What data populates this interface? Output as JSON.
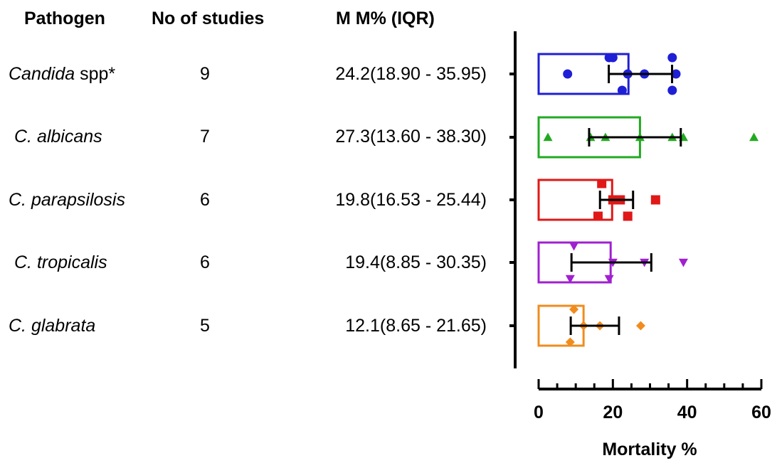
{
  "headers": {
    "pathogen": "Pathogen",
    "studies": "No of studies",
    "mm": "M M% (IQR)"
  },
  "rows": [
    {
      "name_italic": "Candida",
      "name_rest": " spp*",
      "studies": "9",
      "mm": "24.2(18.90 - 35.95)"
    },
    {
      "name_italic": "C. albicans",
      "name_rest": "",
      "studies": "7",
      "mm": "27.3(13.60 - 38.30)"
    },
    {
      "name_italic": "C. parapsilosis",
      "name_rest": "",
      "studies": "6",
      "mm": "19.8(16.53 - 25.44)"
    },
    {
      "name_italic": "C. tropicalis",
      "name_rest": "",
      "studies": "6",
      "mm": "19.4(8.85 - 30.35)"
    },
    {
      "name_italic": "C. glabrata",
      "name_rest": "",
      "studies": "5",
      "mm": "12.1(8.65 - 21.65)"
    }
  ],
  "chart_data": {
    "type": "bar",
    "xlabel": "Mortality %",
    "xlim": [
      0,
      60
    ],
    "xticks": [
      "0",
      "20",
      "40",
      "60"
    ],
    "minor_tick_step": 5,
    "orientation": "horizontal",
    "series": [
      {
        "median": 24.2,
        "iqr": [
          18.9,
          35.95
        ],
        "color": "#1f1fd6",
        "marker": "circle",
        "points": [
          7.8,
          20.0,
          19.0,
          24.0,
          28.5,
          36.0,
          22.5,
          37.0,
          36.0
        ]
      },
      {
        "median": 27.3,
        "iqr": [
          13.6,
          38.3
        ],
        "color": "#22aa22",
        "marker": "triangle-up",
        "points": [
          2.5,
          14.0,
          18.0,
          27.3,
          36.0,
          39.0,
          58.0
        ]
      },
      {
        "median": 19.8,
        "iqr": [
          16.53,
          25.44
        ],
        "color": "#e01818",
        "marker": "square",
        "points": [
          17.0,
          20.0,
          22.0,
          16.0,
          24.0,
          31.5
        ]
      },
      {
        "median": 19.4,
        "iqr": [
          8.85,
          30.35
        ],
        "color": "#a020d0",
        "marker": "triangle-down",
        "points": [
          9.5,
          20.0,
          8.5,
          19.0,
          28.5,
          39.0
        ]
      },
      {
        "median": 12.1,
        "iqr": [
          8.65,
          21.65
        ],
        "color": "#f08c1e",
        "marker": "diamond",
        "points": [
          9.5,
          12.1,
          16.5,
          8.5,
          27.5
        ]
      }
    ]
  }
}
